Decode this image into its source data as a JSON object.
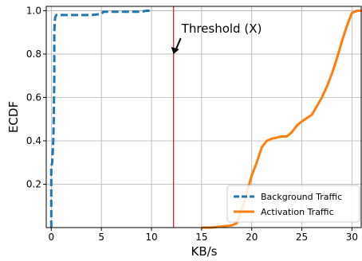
{
  "chart_data": {
    "type": "line",
    "xlabel": "KB/s",
    "ylabel": "ECDF",
    "xlim": [
      -0.5,
      31
    ],
    "ylim": [
      0,
      1.02
    ],
    "xticks": [
      "0",
      "5",
      "10",
      "15",
      "20",
      "25",
      "30"
    ],
    "yticks": [
      "0.2",
      "0.4",
      "0.6",
      "0.8",
      "1.0"
    ],
    "grid": true,
    "legend_position": "bottom-right",
    "threshold": {
      "x": 12.2,
      "color": "#d62728"
    },
    "annotation": {
      "text": "Threshold (X)",
      "arrow_to": [
        12.2,
        0.8
      ]
    },
    "series": [
      {
        "name": "Background Traffic",
        "color": "#1f77b4",
        "dash": true,
        "x": [
          0.0,
          0.0,
          0.1,
          0.2,
          0.25,
          0.3,
          0.3,
          0.35,
          0.4,
          0.5,
          1.0,
          2.0,
          3.0,
          4.0,
          5.0,
          5.2,
          6.0,
          7.0,
          8.0,
          9.0,
          9.5,
          10.0
        ],
        "y": [
          0.0,
          0.28,
          0.3,
          0.4,
          0.5,
          0.7,
          0.9,
          0.95,
          0.97,
          0.98,
          0.98,
          0.98,
          0.98,
          0.98,
          0.985,
          0.995,
          0.995,
          0.995,
          0.995,
          0.995,
          1.0,
          1.0
        ]
      },
      {
        "name": "Activation Traffic",
        "color": "#ff7f0e",
        "dash": false,
        "x": [
          15.0,
          16.0,
          17.0,
          18.0,
          18.5,
          19.0,
          19.5,
          20.0,
          20.5,
          21.0,
          21.5,
          22.0,
          23.0,
          23.5,
          24.0,
          24.5,
          25.0,
          26.0,
          26.5,
          27.0,
          27.5,
          28.0,
          28.5,
          29.0,
          29.5,
          30.0,
          30.5,
          31.0
        ],
        "y": [
          0.0,
          0.0,
          0.005,
          0.01,
          0.02,
          0.08,
          0.16,
          0.24,
          0.3,
          0.37,
          0.4,
          0.41,
          0.42,
          0.42,
          0.44,
          0.47,
          0.49,
          0.52,
          0.56,
          0.6,
          0.65,
          0.71,
          0.78,
          0.86,
          0.93,
          0.99,
          1.0,
          1.0
        ]
      }
    ]
  }
}
